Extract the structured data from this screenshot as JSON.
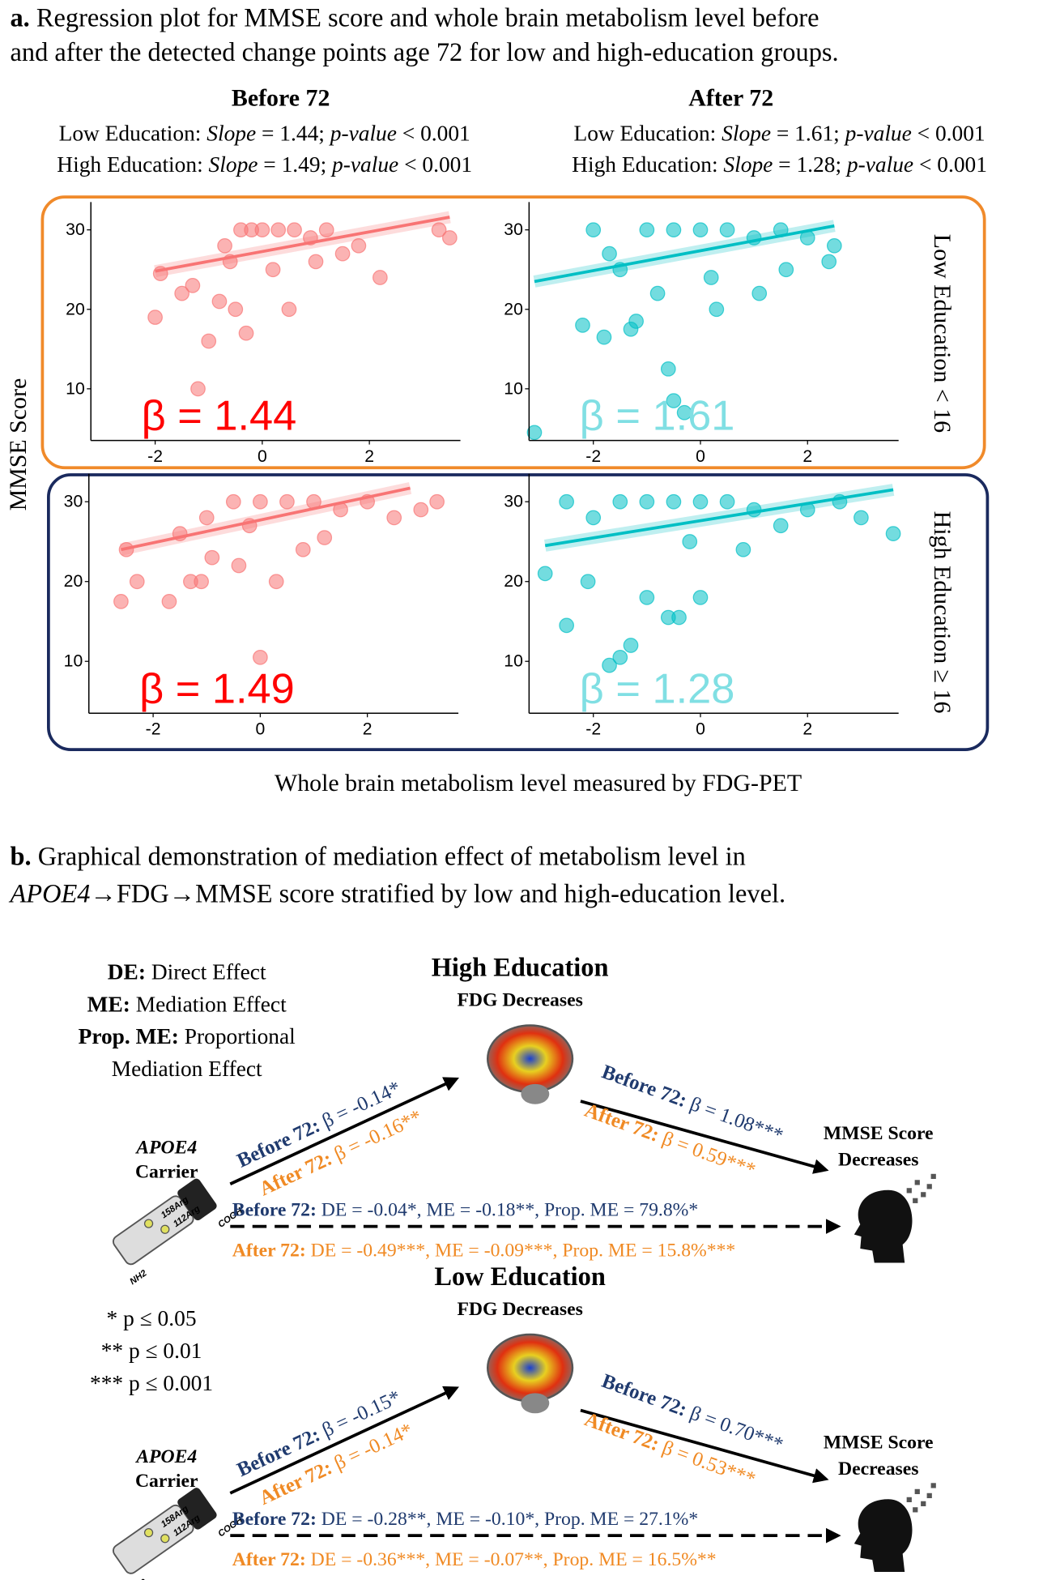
{
  "panel_a": {
    "label": "a.",
    "caption": [
      "Regression plot for MMSE score and whole brain metabolism level before",
      "and after the detected change points age 72 for low and high-education groups."
    ],
    "columns": [
      {
        "title": "Before 72",
        "stats": [
          [
            {
              "text": "Low Education: "
            },
            {
              "text": "Slope",
              "italic": true
            },
            {
              "text": " = 1.44; "
            },
            {
              "text": "p-value",
              "italic": true
            },
            {
              "text": " < 0.001"
            }
          ],
          [
            {
              "text": "High Education: "
            },
            {
              "text": "Slope",
              "italic": true
            },
            {
              "text": " = 1.49; "
            },
            {
              "text": "p-value",
              "italic": true
            },
            {
              "text": " < 0.001"
            }
          ]
        ]
      },
      {
        "title": "After 72",
        "stats": [
          [
            {
              "text": "Low Education: "
            },
            {
              "text": "Slope",
              "italic": true
            },
            {
              "text": " = 1.61; "
            },
            {
              "text": "p-value",
              "italic": true
            },
            {
              "text": " < 0.001"
            }
          ],
          [
            {
              "text": "High Education: "
            },
            {
              "text": "Slope",
              "italic": true
            },
            {
              "text": " = 1.28; "
            },
            {
              "text": "p-value",
              "italic": true
            },
            {
              "text": " < 0.001"
            }
          ]
        ]
      }
    ],
    "y_label": "MMSE Score",
    "x_label": "Whole brain metabolism level measured by FDG-PET",
    "row_labels": [
      "Low Education < 16",
      "High Education ≥ 16"
    ]
  },
  "chart_data": [
    {
      "type": "scatter",
      "annotation": "β = 1.44",
      "annotation_color": "#ff0000",
      "color": "#f87474",
      "x": [
        -2,
        -1.9,
        -1.5,
        -1.2,
        -1,
        -0.8,
        -0.5,
        -0.3,
        0.5,
        -0.7,
        -0.4,
        -0.2,
        0,
        0.3,
        0.6,
        0.9,
        1.2,
        1.5,
        -0.6,
        0.2,
        1,
        2.2,
        3.3,
        3.5,
        -1.3,
        1.8
      ],
      "values": [
        19,
        24.5,
        22,
        10,
        16,
        21,
        20,
        17,
        20,
        28,
        30,
        30,
        30,
        30,
        30,
        29,
        30,
        27,
        26,
        25,
        26,
        24,
        30,
        29,
        23,
        28
      ],
      "fit": {
        "x": [
          -2,
          3.5
        ],
        "y": [
          24.8,
          31.6
        ]
      },
      "xlim": [
        -3.2,
        3.7
      ],
      "ylim": [
        3.5,
        33.5
      ],
      "xticks": [
        -2,
        0,
        2
      ],
      "yticks": [
        10,
        20,
        30
      ]
    },
    {
      "type": "scatter",
      "annotation": "β = 1.61",
      "annotation_color": "#80dfe3",
      "color": "#00bfc4",
      "x": [
        -3.1,
        -2.2,
        -1.8,
        -1.3,
        -1.2,
        -0.6,
        -0.5,
        -0.3,
        0.3,
        1.1,
        -2,
        -1.7,
        -1.5,
        -1,
        -0.5,
        0,
        0.5,
        1,
        1.5,
        2,
        2.5,
        2.4,
        -0.8,
        0.2,
        1.6
      ],
      "values": [
        4.5,
        18,
        16.5,
        17.5,
        18.5,
        12.5,
        8.5,
        7,
        20,
        22,
        30,
        27,
        25,
        30,
        30,
        30,
        30,
        29,
        30,
        29,
        28,
        26,
        22,
        24,
        25
      ],
      "fit": {
        "x": [
          -3.1,
          2.5
        ],
        "y": [
          23.5,
          30.5
        ]
      },
      "xlim": [
        -3.2,
        3.7
      ],
      "ylim": [
        3.5,
        33.5
      ],
      "xticks": [
        -2,
        0,
        2
      ],
      "yticks": [
        10,
        20,
        30
      ]
    },
    {
      "type": "scatter",
      "annotation": "β = 1.49",
      "annotation_color": "#ff0000",
      "color": "#f87474",
      "x": [
        -2.6,
        -2.5,
        -2.3,
        -1.7,
        -1.3,
        -1.1,
        -0.9,
        0,
        -0.4,
        0.3,
        0.8,
        -1,
        -0.5,
        0,
        0.5,
        1,
        1.5,
        2,
        2.5,
        3,
        3.3,
        -0.2,
        1.2,
        -1.5
      ],
      "values": [
        17.5,
        24,
        20,
        17.5,
        20,
        20,
        23,
        10.5,
        22,
        20,
        24,
        28,
        30,
        30,
        30,
        30,
        29,
        30,
        28,
        29,
        30,
        27,
        25.5,
        26
      ],
      "fit": {
        "x": [
          -2.6,
          2.8
        ],
        "y": [
          24,
          31.7
        ]
      },
      "xlim": [
        -3.2,
        3.7
      ],
      "ylim": [
        3.5,
        33.5
      ],
      "xticks": [
        -2,
        0,
        2
      ],
      "yticks": [
        10,
        20,
        30
      ]
    },
    {
      "type": "scatter",
      "annotation": "β = 1.28",
      "annotation_color": "#80dfe3",
      "color": "#00bfc4",
      "x": [
        -2.9,
        -2.5,
        -2.1,
        -1.7,
        -1.5,
        -1.3,
        -1,
        -0.6,
        -0.4,
        0,
        -2.5,
        -2,
        -1.5,
        -1,
        -0.5,
        0,
        0.5,
        1,
        1.5,
        2,
        2.6,
        3,
        3.6,
        0.8,
        -0.2
      ],
      "values": [
        21,
        14.5,
        20,
        9.5,
        10.5,
        12,
        18,
        15.5,
        15.5,
        18,
        30,
        28,
        30,
        30,
        30,
        30,
        30,
        29,
        27,
        29,
        30,
        28,
        26,
        24,
        25
      ],
      "fit": {
        "x": [
          -2.9,
          3.6
        ],
        "y": [
          24.5,
          31.5
        ]
      },
      "xlim": [
        -3.2,
        3.7
      ],
      "ylim": [
        3.5,
        33.5
      ],
      "xticks": [
        -2,
        0,
        2
      ],
      "yticks": [
        10,
        20,
        30
      ]
    }
  ],
  "panel_b": {
    "label": "b.",
    "caption_line1": "Graphical demonstration of mediation effect of metabolism level in",
    "caption_line2": [
      {
        "text": "APOE4",
        "italic": true
      },
      {
        "text": "→FDG→MMSE score stratified by low and high-education level."
      }
    ],
    "legend": [
      {
        "term": "DE:",
        "desc": " Direct Effect"
      },
      {
        "term": "ME:",
        "desc": " Mediation Effect"
      },
      {
        "term": "Prop. ME:",
        "desc": " Proportional"
      },
      {
        "term": "",
        "desc": "Mediation Effect"
      }
    ],
    "significance": [
      "* p ≤ 0.05",
      "** p ≤ 0.01",
      "*** p ≤ 0.001"
    ],
    "protein_labels": [
      "NH2",
      "COOH",
      "158Arg",
      "112Arg"
    ],
    "groups": [
      {
        "title": "High Education",
        "mediator": "FDG Decreases",
        "exposure": [
          "APOE4",
          "Carrier"
        ],
        "outcome": [
          "MMSE Score",
          "Decreases"
        ],
        "a_path": [
          {
            "bold": "Before 72:",
            "text": " β = -0.14*"
          },
          {
            "bold": "After 72:",
            "text": " β = -0.16**"
          }
        ],
        "b_path": [
          {
            "bold": "Before 72:",
            "text": " β = 1.08***"
          },
          {
            "bold": "After 72:",
            "text": " β = 0.59***"
          }
        ],
        "direct": [
          {
            "bold": "Before 72:",
            "text": " DE = -0.04*, ME = -0.18**, Prop. ME = 79.8%*"
          },
          {
            "bold": "After 72:",
            "text": " DE = -0.49***, ME = -0.09***, Prop. ME = 15.8%***"
          }
        ]
      },
      {
        "title": "Low Education",
        "mediator": "FDG Decreases",
        "exposure": [
          "APOE4",
          "Carrier"
        ],
        "outcome": [
          "MMSE Score",
          "Decreases"
        ],
        "a_path": [
          {
            "bold": "Before 72:",
            "text": " β = -0.15*"
          },
          {
            "bold": "After 72:",
            "text": " β = -0.14*"
          }
        ],
        "b_path": [
          {
            "bold": "Before 72:",
            "text": " β = 0.70***"
          },
          {
            "bold": "After 72:",
            "text": " β = 0.53***"
          }
        ],
        "direct": [
          {
            "bold": "Before 72:",
            "text": " DE = -0.28**, ME = -0.10*, Prop. ME = 27.1%*"
          },
          {
            "bold": "After 72:",
            "text": " DE = -0.36***, ME = -0.07**, Prop. ME = 16.5%**"
          }
        ]
      }
    ]
  }
}
